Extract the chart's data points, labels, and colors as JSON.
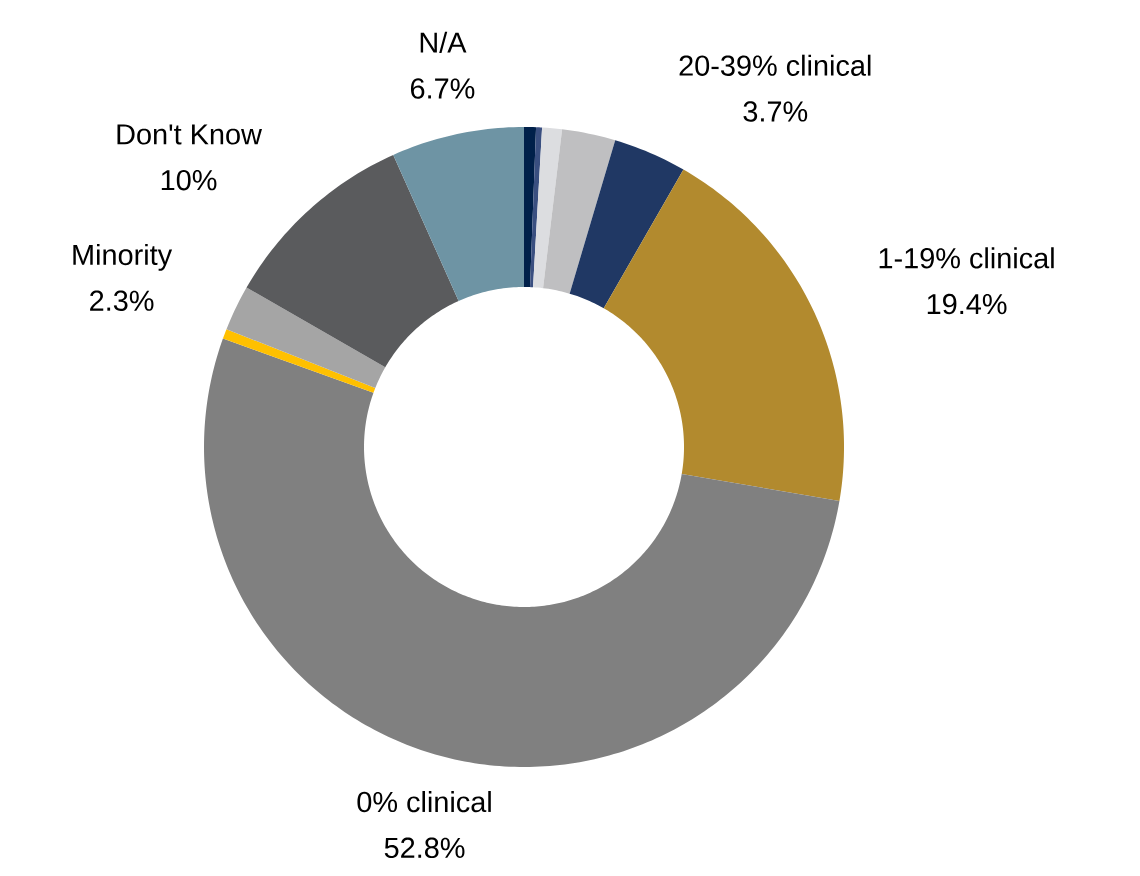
{
  "chart_data": {
    "type": "donut",
    "categories": [
      null,
      null,
      null,
      null,
      "20-39% clinical",
      "1-19% clinical",
      "0% clinical",
      null,
      "Minority",
      "Don't Know",
      "N/A"
    ],
    "values": [
      0.6,
      0.3,
      1.0,
      2.7,
      3.7,
      19.4,
      52.8,
      0.5,
      2.3,
      10,
      6.7
    ],
    "value_labels": [
      null,
      null,
      null,
      null,
      "3.7%",
      "19.4%",
      "52.8%",
      null,
      "2.3%",
      "10%",
      "6.7%"
    ],
    "colors": [
      "#00204a",
      "#3a4f80",
      "#dcdde0",
      "#bfbfc1",
      "#203864",
      "#b28a2e",
      "#808080",
      "#ffc000",
      "#a5a5a5",
      "#5a5b5d",
      "#6e94a4"
    ]
  }
}
